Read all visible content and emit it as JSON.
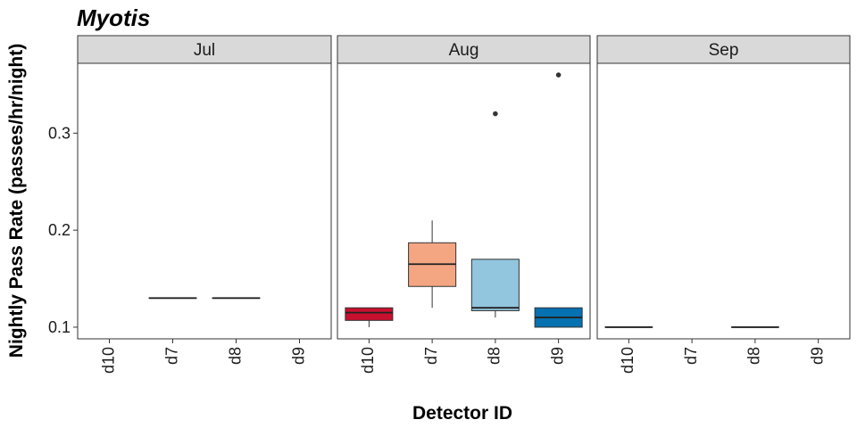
{
  "chart_data": {
    "type": "boxplot",
    "title": "Myotis",
    "xlabel": "Detector ID",
    "ylabel": "Nightly Pass Rate (passes/hr/night)",
    "ylim": [
      0.088,
      0.372
    ],
    "y_ticks": [
      0.1,
      0.2,
      0.3
    ],
    "y_tick_labels": [
      "0.1",
      "0.2",
      "0.3"
    ],
    "categories": [
      "d10",
      "d7",
      "d8",
      "d9"
    ],
    "category_colors": {
      "d10": "#c8102e",
      "d7": "#f4a582",
      "d8": "#92c5de",
      "d9": "#0571b0"
    },
    "facets": [
      {
        "label": "Jul",
        "boxes": [
          {
            "category": "d7",
            "min": 0.13,
            "q1": 0.13,
            "median": 0.13,
            "q3": 0.13,
            "max": 0.13,
            "outliers": []
          },
          {
            "category": "d8",
            "min": 0.13,
            "q1": 0.13,
            "median": 0.13,
            "q3": 0.13,
            "max": 0.13,
            "outliers": []
          }
        ]
      },
      {
        "label": "Aug",
        "boxes": [
          {
            "category": "d10",
            "min": 0.1,
            "q1": 0.107,
            "median": 0.115,
            "q3": 0.12,
            "max": 0.12,
            "outliers": []
          },
          {
            "category": "d7",
            "min": 0.12,
            "q1": 0.142,
            "median": 0.165,
            "q3": 0.187,
            "max": 0.21,
            "outliers": []
          },
          {
            "category": "d8",
            "min": 0.11,
            "q1": 0.117,
            "median": 0.12,
            "q3": 0.17,
            "max": 0.17,
            "outliers": [
              0.32
            ]
          },
          {
            "category": "d9",
            "min": 0.1,
            "q1": 0.1,
            "median": 0.11,
            "q3": 0.12,
            "max": 0.12,
            "outliers": [
              0.36
            ]
          }
        ]
      },
      {
        "label": "Sep",
        "boxes": [
          {
            "category": "d10",
            "min": 0.1,
            "q1": 0.1,
            "median": 0.1,
            "q3": 0.1,
            "max": 0.1,
            "outliers": []
          },
          {
            "category": "d8",
            "min": 0.1,
            "q1": 0.1,
            "median": 0.1,
            "q3": 0.1,
            "max": 0.1,
            "outliers": []
          }
        ]
      }
    ],
    "legend": "none",
    "grid": false
  }
}
